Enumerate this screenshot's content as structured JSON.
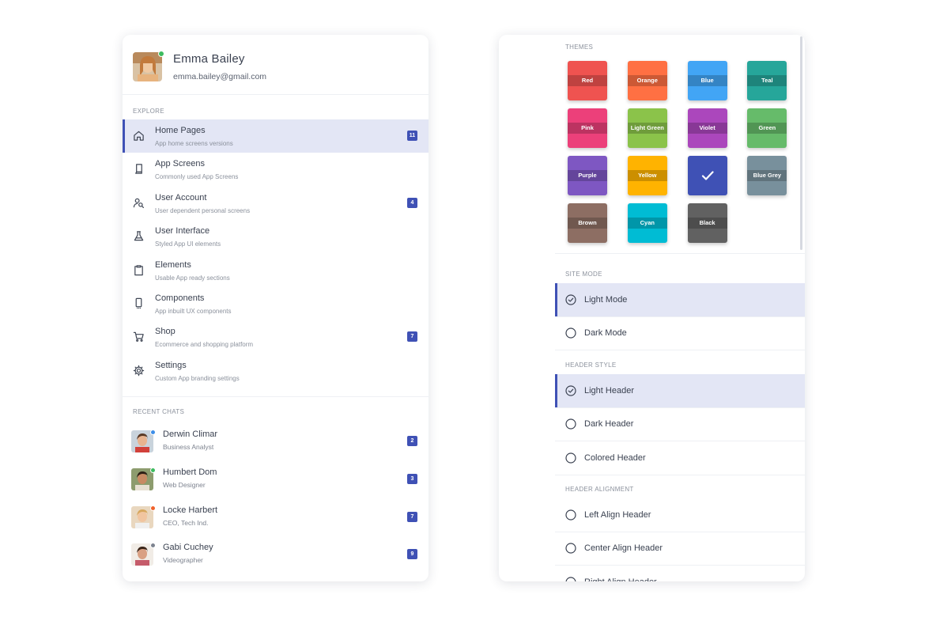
{
  "profile": {
    "name": "Emma Bailey",
    "email": "emma.bailey@gmail.com"
  },
  "explore": {
    "title": "EXPLORE",
    "items": [
      {
        "icon": "home-icon",
        "title": "Home Pages",
        "subtitle": "App home screens versions",
        "badge": "11",
        "active": true
      },
      {
        "icon": "mobile-screens-icon",
        "title": "App Screens",
        "subtitle": "Commonly used App Screens",
        "badge": "",
        "active": false
      },
      {
        "icon": "user-search-icon",
        "title": "User Account",
        "subtitle": "User dependent personal screens",
        "badge": "4",
        "active": false
      },
      {
        "icon": "flask-icon",
        "title": "User Interface",
        "subtitle": "Styled App UI elements",
        "badge": "",
        "active": false
      },
      {
        "icon": "clipboard-icon",
        "title": "Elements",
        "subtitle": "Usable App ready sections",
        "badge": "",
        "active": false
      },
      {
        "icon": "smartphone-icon",
        "title": "Components",
        "subtitle": "App inbuilt UX components",
        "badge": "",
        "active": false
      },
      {
        "icon": "cart-icon",
        "title": "Shop",
        "subtitle": "Ecommerce and shopping platform",
        "badge": "7",
        "active": false
      },
      {
        "icon": "gear-icon",
        "title": "Settings",
        "subtitle": "Custom App branding settings",
        "badge": "",
        "active": false
      }
    ]
  },
  "chats": {
    "title": "RECENT CHATS",
    "items": [
      {
        "name": "Derwin Climar",
        "role": "Business Analyst",
        "badge": "2",
        "status_color": "#3d8ee8"
      },
      {
        "name": "Humbert Dom",
        "role": "Web Designer",
        "badge": "3",
        "status_color": "#3dbb5f"
      },
      {
        "name": "Locke Harbert",
        "role": "CEO, Tech Ind.",
        "badge": "7",
        "status_color": "#f0622b"
      },
      {
        "name": "Gabi Cuchey",
        "role": "Videographer",
        "badge": "9",
        "status_color": "#7d838f"
      }
    ]
  },
  "themes": {
    "title": "THEMES",
    "items": [
      {
        "label": "Red",
        "color": "#ef5350",
        "selected": false
      },
      {
        "label": "Orange",
        "color": "#ff7043",
        "selected": false
      },
      {
        "label": "Blue",
        "color": "#42a5f5",
        "selected": false
      },
      {
        "label": "Teal",
        "color": "#26a69a",
        "selected": false
      },
      {
        "label": "Pink",
        "color": "#ec407a",
        "selected": false
      },
      {
        "label": "Light Green",
        "color": "#8bc34a",
        "selected": false
      },
      {
        "label": "Violet",
        "color": "#ab47bc",
        "selected": false
      },
      {
        "label": "Green",
        "color": "#66bb6a",
        "selected": false
      },
      {
        "label": "Purple",
        "color": "#7e57c2",
        "selected": false
      },
      {
        "label": "Yellow",
        "color": "#ffb300",
        "selected": false
      },
      {
        "label": "",
        "color": "#3f51b5",
        "selected": true
      },
      {
        "label": "Blue Grey",
        "color": "#78909c",
        "selected": false
      },
      {
        "label": "Brown",
        "color": "#8d6e63",
        "selected": false
      },
      {
        "label": "Cyan",
        "color": "#00bcd4",
        "selected": false
      },
      {
        "label": "Black",
        "color": "#616161",
        "selected": false
      }
    ]
  },
  "site_mode": {
    "title": "SITE MODE",
    "options": [
      {
        "label": "Light Mode",
        "selected": true
      },
      {
        "label": "Dark Mode",
        "selected": false
      }
    ]
  },
  "header_style": {
    "title": "HEADER STYLE",
    "options": [
      {
        "label": "Light Header",
        "selected": true
      },
      {
        "label": "Dark Header",
        "selected": false
      },
      {
        "label": "Colored Header",
        "selected": false
      }
    ]
  },
  "header_alignment": {
    "title": "HEADER ALIGNMENT",
    "options": [
      {
        "label": "Left Align Header",
        "selected": false
      },
      {
        "label": "Center Align Header",
        "selected": false
      },
      {
        "label": "Right Align Header",
        "selected": false
      }
    ]
  },
  "colors": {
    "accent": "#3f51b5",
    "active_bg": "#e3e6f5"
  }
}
